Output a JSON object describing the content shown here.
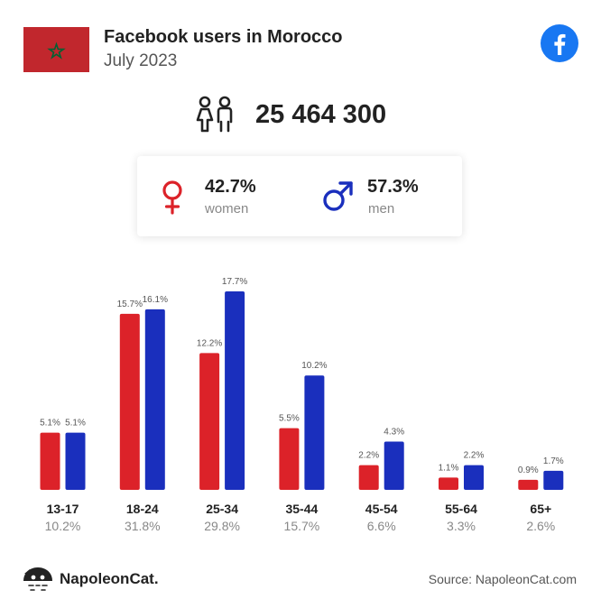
{
  "header": {
    "title": "Facebook users in Morocco",
    "subtitle": "July 2023"
  },
  "total_users": "25 464 300",
  "gender": {
    "women": {
      "pct": "42.7%",
      "label": "women"
    },
    "men": {
      "pct": "57.3%",
      "label": "men"
    }
  },
  "colors": {
    "women": "#dc2229",
    "men": "#1a2fbd",
    "facebook": "#1877f2",
    "flag_red": "#c1272d",
    "flag_star": "#006233"
  },
  "chart_data": {
    "type": "bar",
    "categories": [
      "13-17",
      "18-24",
      "25-34",
      "35-44",
      "45-54",
      "55-64",
      "65+"
    ],
    "category_totals": [
      "10.2%",
      "31.8%",
      "29.8%",
      "15.7%",
      "6.6%",
      "3.3%",
      "2.6%"
    ],
    "series": [
      {
        "values": [
          5.1,
          15.7,
          12.2,
          5.5,
          2.2,
          1.1,
          0.9
        ],
        "labels": [
          "5.1%",
          "15.7%",
          "12.2%",
          "5.5%",
          "2.2%",
          "1.1%",
          "0.9%"
        ]
      },
      {
        "values": [
          5.1,
          16.1,
          17.7,
          10.2,
          4.3,
          2.2,
          1.7
        ],
        "labels": [
          "5.1%",
          "16.1%",
          "17.7%",
          "10.2%",
          "4.3%",
          "2.2%",
          "1.7%"
        ]
      }
    ],
    "ylim": [
      0,
      17.7
    ]
  },
  "footer": {
    "brand": "NapoleonCat.",
    "source": "Source: NapoleonCat.com"
  }
}
